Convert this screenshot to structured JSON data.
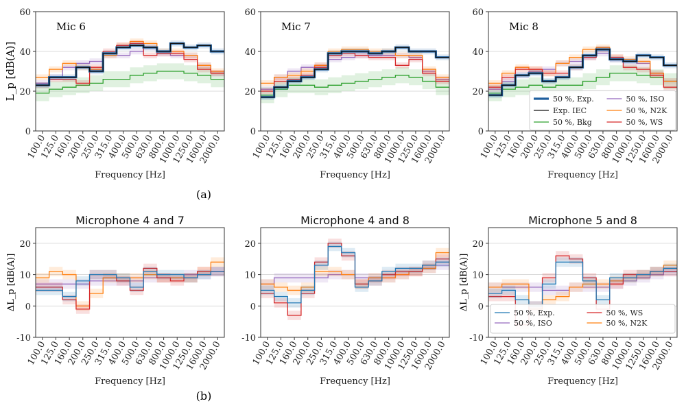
{
  "captions": {
    "a": "(a)",
    "b": "(b)"
  },
  "colors": {
    "exp": "#1f5f9e",
    "iec": "#111111",
    "bkg": "#2ca02c",
    "iso": "#9467bd",
    "n2k": "#ff7f0e",
    "ws": "#d62728",
    "exp_light": "#1f77b4"
  },
  "chart_data": [
    {
      "type": "line",
      "panel_label": "Mic 6",
      "title": "",
      "xlabel": "Frequency [Hz]",
      "ylabel": "L_p [dB(A)]",
      "ylim": [
        0,
        60
      ],
      "yticks": [
        0,
        20,
        40,
        60
      ],
      "grid": "y",
      "categories": [
        "100.0",
        "125.0",
        "160.0",
        "200.0",
        "250.0",
        "315.0",
        "400.0",
        "500.0",
        "630.0",
        "800.0",
        "1000.0",
        "1250.0",
        "1600.0",
        "2000.0"
      ],
      "series": [
        {
          "key": "bkg",
          "name": "50 %, Bkg",
          "values": [
            19,
            21,
            22,
            23,
            24,
            26,
            26,
            28,
            29,
            30,
            30,
            29,
            28,
            26
          ]
        },
        {
          "key": "iso",
          "name": "50 %, ISO",
          "values": [
            24,
            27,
            32,
            34,
            35,
            38,
            38,
            40,
            42,
            39,
            38,
            38,
            33,
            29
          ]
        },
        {
          "key": "n2k",
          "name": "50 %, N2K",
          "values": [
            27,
            31,
            34,
            32,
            31,
            38,
            43,
            45,
            44,
            40,
            40,
            38,
            33,
            30
          ]
        },
        {
          "key": "ws",
          "name": "50 %, WS",
          "values": [
            23,
            26,
            26,
            24,
            32,
            40,
            43,
            44,
            38,
            39,
            39,
            36,
            31,
            29
          ]
        },
        {
          "key": "exp",
          "name": "50 %, Exp.",
          "values": [
            23,
            27,
            27,
            32,
            30,
            39,
            42,
            43,
            42,
            40,
            44,
            42,
            43,
            40
          ]
        },
        {
          "key": "iec",
          "name": "Exp. IEC",
          "values": [
            23,
            27,
            27,
            32,
            30,
            39,
            42,
            43,
            42,
            40,
            44,
            42,
            43,
            40
          ]
        }
      ]
    },
    {
      "type": "line",
      "panel_label": "Mic 7",
      "title": "",
      "xlabel": "Frequency [Hz]",
      "ylabel": "",
      "ylim": [
        0,
        60
      ],
      "yticks": [
        0,
        20,
        40,
        60
      ],
      "grid": "y",
      "categories": [
        "100.0",
        "125.0",
        "160.0",
        "200.0",
        "250.0",
        "315.0",
        "400.0",
        "500.0",
        "630.0",
        "800.0",
        "1000.0",
        "1250.0",
        "1600.0",
        "2000.0"
      ],
      "series": [
        {
          "key": "bkg",
          "name": "50 %, Bkg",
          "values": [
            18,
            21,
            23,
            23,
            22,
            23,
            24,
            25,
            26,
            27,
            28,
            27,
            25,
            22
          ]
        },
        {
          "key": "iso",
          "name": "50 %, ISO",
          "values": [
            21,
            27,
            30,
            32,
            33,
            36,
            37,
            38,
            38,
            38,
            38,
            37,
            30,
            26
          ]
        },
        {
          "key": "n2k",
          "name": "50 %, N2K",
          "values": [
            24,
            27,
            28,
            30,
            33,
            40,
            41,
            41,
            40,
            40,
            38,
            38,
            31,
            27
          ]
        },
        {
          "key": "ws",
          "name": "50 %, WS",
          "values": [
            20,
            25,
            26,
            28,
            32,
            38,
            39,
            38,
            37,
            37,
            33,
            36,
            29,
            25
          ]
        },
        {
          "key": "exp",
          "name": "50 %, Exp.",
          "values": [
            17,
            22,
            25,
            27,
            31,
            39,
            40,
            40,
            39,
            40,
            42,
            40,
            40,
            37
          ]
        },
        {
          "key": "iec",
          "name": "Exp. IEC",
          "values": [
            17,
            22,
            25,
            27,
            31,
            39,
            40,
            40,
            39,
            40,
            42,
            40,
            40,
            37
          ]
        }
      ]
    },
    {
      "type": "line",
      "panel_label": "Mic 8",
      "title": "",
      "xlabel": "Frequency [Hz]",
      "ylabel": "",
      "ylim": [
        0,
        60
      ],
      "yticks": [
        0,
        20,
        40,
        60
      ],
      "grid": "y",
      "legend": "bottom-right",
      "categories": [
        "100.0",
        "125.0",
        "160.0",
        "200.0",
        "250.0",
        "315.0",
        "400.0",
        "500.0",
        "630.0",
        "800.0",
        "1000.0",
        "1250.0",
        "1600.0",
        "2000.0"
      ],
      "series": [
        {
          "key": "bkg",
          "name": "50 %, Bkg",
          "values": [
            19,
            21,
            22,
            23,
            22,
            23,
            23,
            25,
            27,
            29,
            29,
            28,
            27,
            25
          ]
        },
        {
          "key": "iso",
          "name": "50 %, ISO",
          "values": [
            21,
            25,
            28,
            30,
            31,
            34,
            35,
            37,
            39,
            36,
            35,
            34,
            29,
            25
          ]
        },
        {
          "key": "n2k",
          "name": "50 %, N2K",
          "values": [
            24,
            29,
            32,
            31,
            29,
            34,
            37,
            41,
            42,
            37,
            36,
            35,
            29,
            25
          ]
        },
        {
          "key": "ws",
          "name": "50 %, WS",
          "values": [
            22,
            27,
            31,
            31,
            29,
            29,
            32,
            37,
            41,
            37,
            32,
            31,
            28,
            22
          ]
        },
        {
          "key": "exp",
          "name": "50 %, Exp.",
          "values": [
            18,
            23,
            28,
            29,
            25,
            27,
            32,
            38,
            41,
            36,
            35,
            38,
            37,
            33
          ]
        },
        {
          "key": "iec",
          "name": "Exp. IEC",
          "values": [
            18,
            23,
            28,
            29,
            25,
            27,
            32,
            38,
            41,
            36,
            35,
            38,
            37,
            33
          ]
        }
      ],
      "legend_order": [
        "exp",
        "iso",
        "iec",
        "n2k",
        "bkg",
        "ws"
      ]
    },
    {
      "type": "line",
      "panel_label": "",
      "title": "Microphone 4 and 7",
      "xlabel": "Frequency [Hz]",
      "ylabel": "ΔL_p [dB(A)]",
      "ylim": [
        -10,
        25
      ],
      "yticks": [
        -10,
        0,
        10,
        20
      ],
      "grid": "y",
      "categories": [
        "100.0",
        "125.0",
        "160.0",
        "200.0",
        "250.0",
        "315.0",
        "400.0",
        "500.0",
        "630.0",
        "800.0",
        "1000.0",
        "1250.0",
        "1600.0",
        "2000.0"
      ],
      "series": [
        {
          "key": "iso",
          "name": "50 %, ISO",
          "values": [
            7,
            7,
            7,
            7,
            8,
            8,
            8,
            8,
            9,
            9,
            9,
            10,
            10,
            11
          ]
        },
        {
          "key": "n2k",
          "name": "50 %, N2K",
          "values": [
            9,
            11,
            10,
            0,
            4,
            9,
            9,
            9,
            10,
            9,
            9,
            9,
            11,
            14
          ]
        },
        {
          "key": "ws",
          "name": "50 %, WS",
          "values": [
            6,
            6,
            2,
            -1,
            10,
            10,
            8,
            5,
            12,
            9,
            8,
            9,
            11,
            11
          ]
        },
        {
          "key": "exp_light",
          "name": "50 %, Exp.",
          "values": [
            5,
            5,
            3,
            8,
            10,
            10,
            9,
            6,
            11,
            10,
            10,
            9,
            10,
            11
          ]
        }
      ]
    },
    {
      "type": "line",
      "panel_label": "",
      "title": "Microphone 4 and 8",
      "xlabel": "Frequency [Hz]",
      "ylabel": "",
      "ylim": [
        -10,
        25
      ],
      "yticks": [
        -10,
        0,
        10,
        20
      ],
      "grid": "y",
      "categories": [
        "100.0",
        "125.0",
        "160.0",
        "200.0",
        "250.0",
        "315.0",
        "400.0",
        "500.0",
        "630.0",
        "800.0",
        "1000.0",
        "1250.0",
        "1600.0",
        "2000.0"
      ],
      "series": [
        {
          "key": "iso",
          "name": "50 %, ISO",
          "values": [
            7,
            9,
            9,
            9,
            9,
            10,
            10,
            9,
            9,
            9,
            10,
            11,
            12,
            13
          ]
        },
        {
          "key": "n2k",
          "name": "50 %, N2K",
          "values": [
            7,
            6,
            5,
            6,
            11,
            11,
            10,
            7,
            9,
            9,
            10,
            11,
            12,
            17
          ]
        },
        {
          "key": "ws",
          "name": "50 %, WS",
          "values": [
            4,
            1,
            -3,
            4,
            14,
            20,
            16,
            7,
            8,
            10,
            11,
            11,
            13,
            15
          ]
        },
        {
          "key": "exp_light",
          "name": "50 %, Exp.",
          "values": [
            5,
            3,
            1,
            5,
            13,
            19,
            17,
            6,
            8,
            11,
            12,
            12,
            13,
            14
          ]
        }
      ]
    },
    {
      "type": "line",
      "panel_label": "",
      "title": "Microphone 5 and 8",
      "xlabel": "Frequency [Hz]",
      "ylabel": "ΔL_p [dB(A)]",
      "ylim": [
        -10,
        25
      ],
      "yticks": [
        -10,
        0,
        10,
        20
      ],
      "grid": "y",
      "legend": "bottom",
      "categories": [
        "100.0",
        "125.0",
        "160.0",
        "200.0",
        "250.0",
        "315.0",
        "400.0",
        "500.0",
        "630.0",
        "800.0",
        "1000.0",
        "1250.0",
        "1600.0",
        "2000.0"
      ],
      "series": [
        {
          "key": "iso",
          "name": "50 %, ISO",
          "values": [
            6,
            6,
            6,
            6,
            5,
            5,
            6,
            6,
            6,
            7,
            8,
            9,
            10,
            11
          ]
        },
        {
          "key": "n2k",
          "name": "50 %, N2K",
          "values": [
            6,
            7,
            7,
            -1,
            2,
            3,
            6,
            7,
            7,
            8,
            9,
            10,
            11,
            13
          ]
        },
        {
          "key": "ws",
          "name": "50 %, WS",
          "values": [
            3,
            3,
            -6,
            0,
            9,
            16,
            15,
            9,
            -1,
            7,
            10,
            10,
            11,
            11
          ]
        },
        {
          "key": "exp_light",
          "name": "50 %, Exp.",
          "values": [
            4,
            5,
            2,
            0,
            7,
            14,
            14,
            8,
            2,
            9,
            9,
            10,
            11,
            12
          ]
        }
      ],
      "legend_order": [
        "exp_light",
        "ws",
        "iso",
        "n2k"
      ]
    }
  ]
}
